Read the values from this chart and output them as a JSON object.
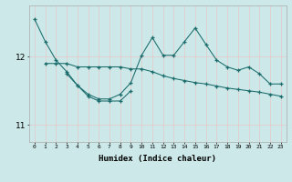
{
  "xlabel": "Humidex (Indice chaleur)",
  "ylabel": "",
  "bg_color": "#cce8e8",
  "line_color": "#1a6b6b",
  "x": [
    0,
    1,
    2,
    3,
    4,
    5,
    6,
    7,
    8,
    9,
    10,
    11,
    12,
    13,
    14,
    15,
    16,
    17,
    18,
    19,
    20,
    21,
    22,
    23
  ],
  "line1": [
    12.55,
    12.22,
    11.95,
    11.78,
    11.58,
    11.45,
    11.38,
    11.38,
    11.45,
    11.62,
    12.02,
    12.28,
    12.02,
    12.02,
    12.22,
    12.42,
    12.18,
    11.95,
    11.85,
    11.8,
    11.85,
    11.75,
    11.6,
    11.6
  ],
  "line2": [
    null,
    11.9,
    11.9,
    11.9,
    11.85,
    11.85,
    11.85,
    11.85,
    11.85,
    11.82,
    11.82,
    11.78,
    11.72,
    11.68,
    11.65,
    11.62,
    11.6,
    11.57,
    11.54,
    11.52,
    11.5,
    11.48,
    11.45,
    11.42
  ],
  "line3": [
    null,
    null,
    null,
    11.75,
    11.58,
    11.42,
    11.35,
    11.35,
    11.35,
    11.5,
    null,
    null,
    null,
    null,
    null,
    null,
    null,
    null,
    null,
    null,
    null,
    null,
    null,
    null
  ],
  "ylim": [
    10.75,
    12.75
  ],
  "yticks": [
    11,
    12
  ],
  "xticks": [
    0,
    1,
    2,
    3,
    4,
    5,
    6,
    7,
    8,
    9,
    10,
    11,
    12,
    13,
    14,
    15,
    16,
    17,
    18,
    19,
    20,
    21,
    22,
    23
  ]
}
